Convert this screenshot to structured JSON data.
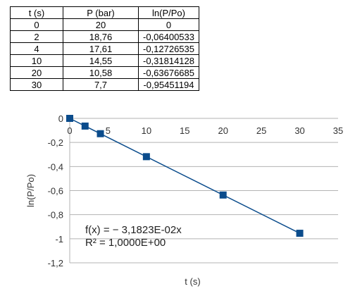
{
  "table": {
    "headers": [
      "t (s)",
      "P (bar)",
      "ln(P/Po)"
    ],
    "rows": [
      [
        "0",
        "20",
        "0"
      ],
      [
        "2",
        "18,76",
        "-0,06400533"
      ],
      [
        "4",
        "17,61",
        "-0,12726535"
      ],
      [
        "10",
        "14,55",
        "-0,31814128"
      ],
      [
        "20",
        "10,58",
        "-0,63676685"
      ],
      [
        "30",
        "7,7",
        "-0,95451194"
      ]
    ]
  },
  "chart_data": {
    "type": "scatter",
    "xlabel": "t (s)",
    "ylabel": "ln(P/Po)",
    "xlim": [
      0,
      35
    ],
    "ylim": [
      -1.2,
      0
    ],
    "x_ticks": [
      0,
      5,
      10,
      15,
      20,
      25,
      30,
      35
    ],
    "x_tick_labels": [
      "0",
      "5",
      "10",
      "15",
      "20",
      "25",
      "30",
      "35"
    ],
    "y_ticks": [
      0,
      -0.2,
      -0.4,
      -0.6,
      -0.8,
      -1,
      -1.2
    ],
    "y_tick_labels": [
      "0",
      "-0,2",
      "-0,4",
      "-0,6",
      "-0,8",
      "-1",
      "-1,2"
    ],
    "grid": "horizontal",
    "series": [
      {
        "x": [
          0,
          2,
          4,
          10,
          20,
          30
        ],
        "y": [
          0,
          -0.06400533,
          -0.12726535,
          -0.31814128,
          -0.63676685,
          -0.95451194
        ],
        "color": "#0b4c8c"
      }
    ],
    "trendline": {
      "type": "linear",
      "slope": -0.031823,
      "intercept": 0,
      "x_range": [
        0,
        30
      ],
      "color": "#0b4c8c",
      "equation": "f(x) = − 3,1823E-02x",
      "r_squared": "R² = 1,0000E+00"
    }
  }
}
